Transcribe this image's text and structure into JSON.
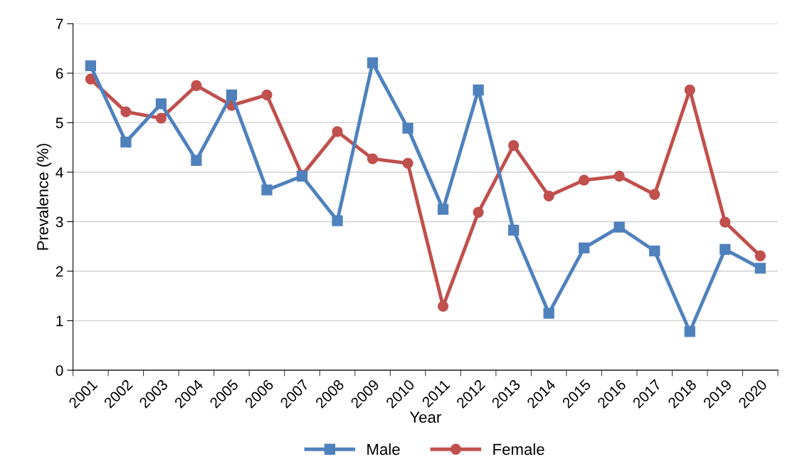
{
  "chart_data": {
    "type": "line",
    "xlabel": "Year",
    "ylabel": "Prevalence (%)",
    "categories": [
      "2001",
      "2002",
      "2003",
      "2004",
      "2005",
      "2006",
      "2007",
      "2008",
      "2009",
      "2010",
      "2011",
      "2012",
      "2013",
      "2014",
      "2015",
      "2016",
      "2017",
      "2018",
      "2019",
      "2020"
    ],
    "series": [
      {
        "name": "Male",
        "color": "#4f81bd",
        "marker": "square",
        "values": [
          6.15,
          4.61,
          5.38,
          4.24,
          5.56,
          3.64,
          3.92,
          3.02,
          6.21,
          4.89,
          3.25,
          5.66,
          2.83,
          1.15,
          2.47,
          2.89,
          2.41,
          0.78,
          2.44,
          2.06
        ]
      },
      {
        "name": "Female",
        "color": "#c0504d",
        "marker": "circle",
        "values": [
          5.88,
          5.22,
          5.09,
          5.75,
          5.35,
          5.56,
          3.94,
          4.82,
          4.27,
          4.18,
          1.29,
          3.19,
          4.54,
          3.52,
          3.84,
          3.92,
          3.55,
          5.66,
          2.99,
          2.31
        ]
      }
    ],
    "ylim": [
      0,
      7
    ],
    "yticks": [
      0,
      1,
      2,
      3,
      4,
      5,
      6,
      7
    ],
    "grid": "y",
    "legend": "bottom",
    "line_style": "solid"
  }
}
